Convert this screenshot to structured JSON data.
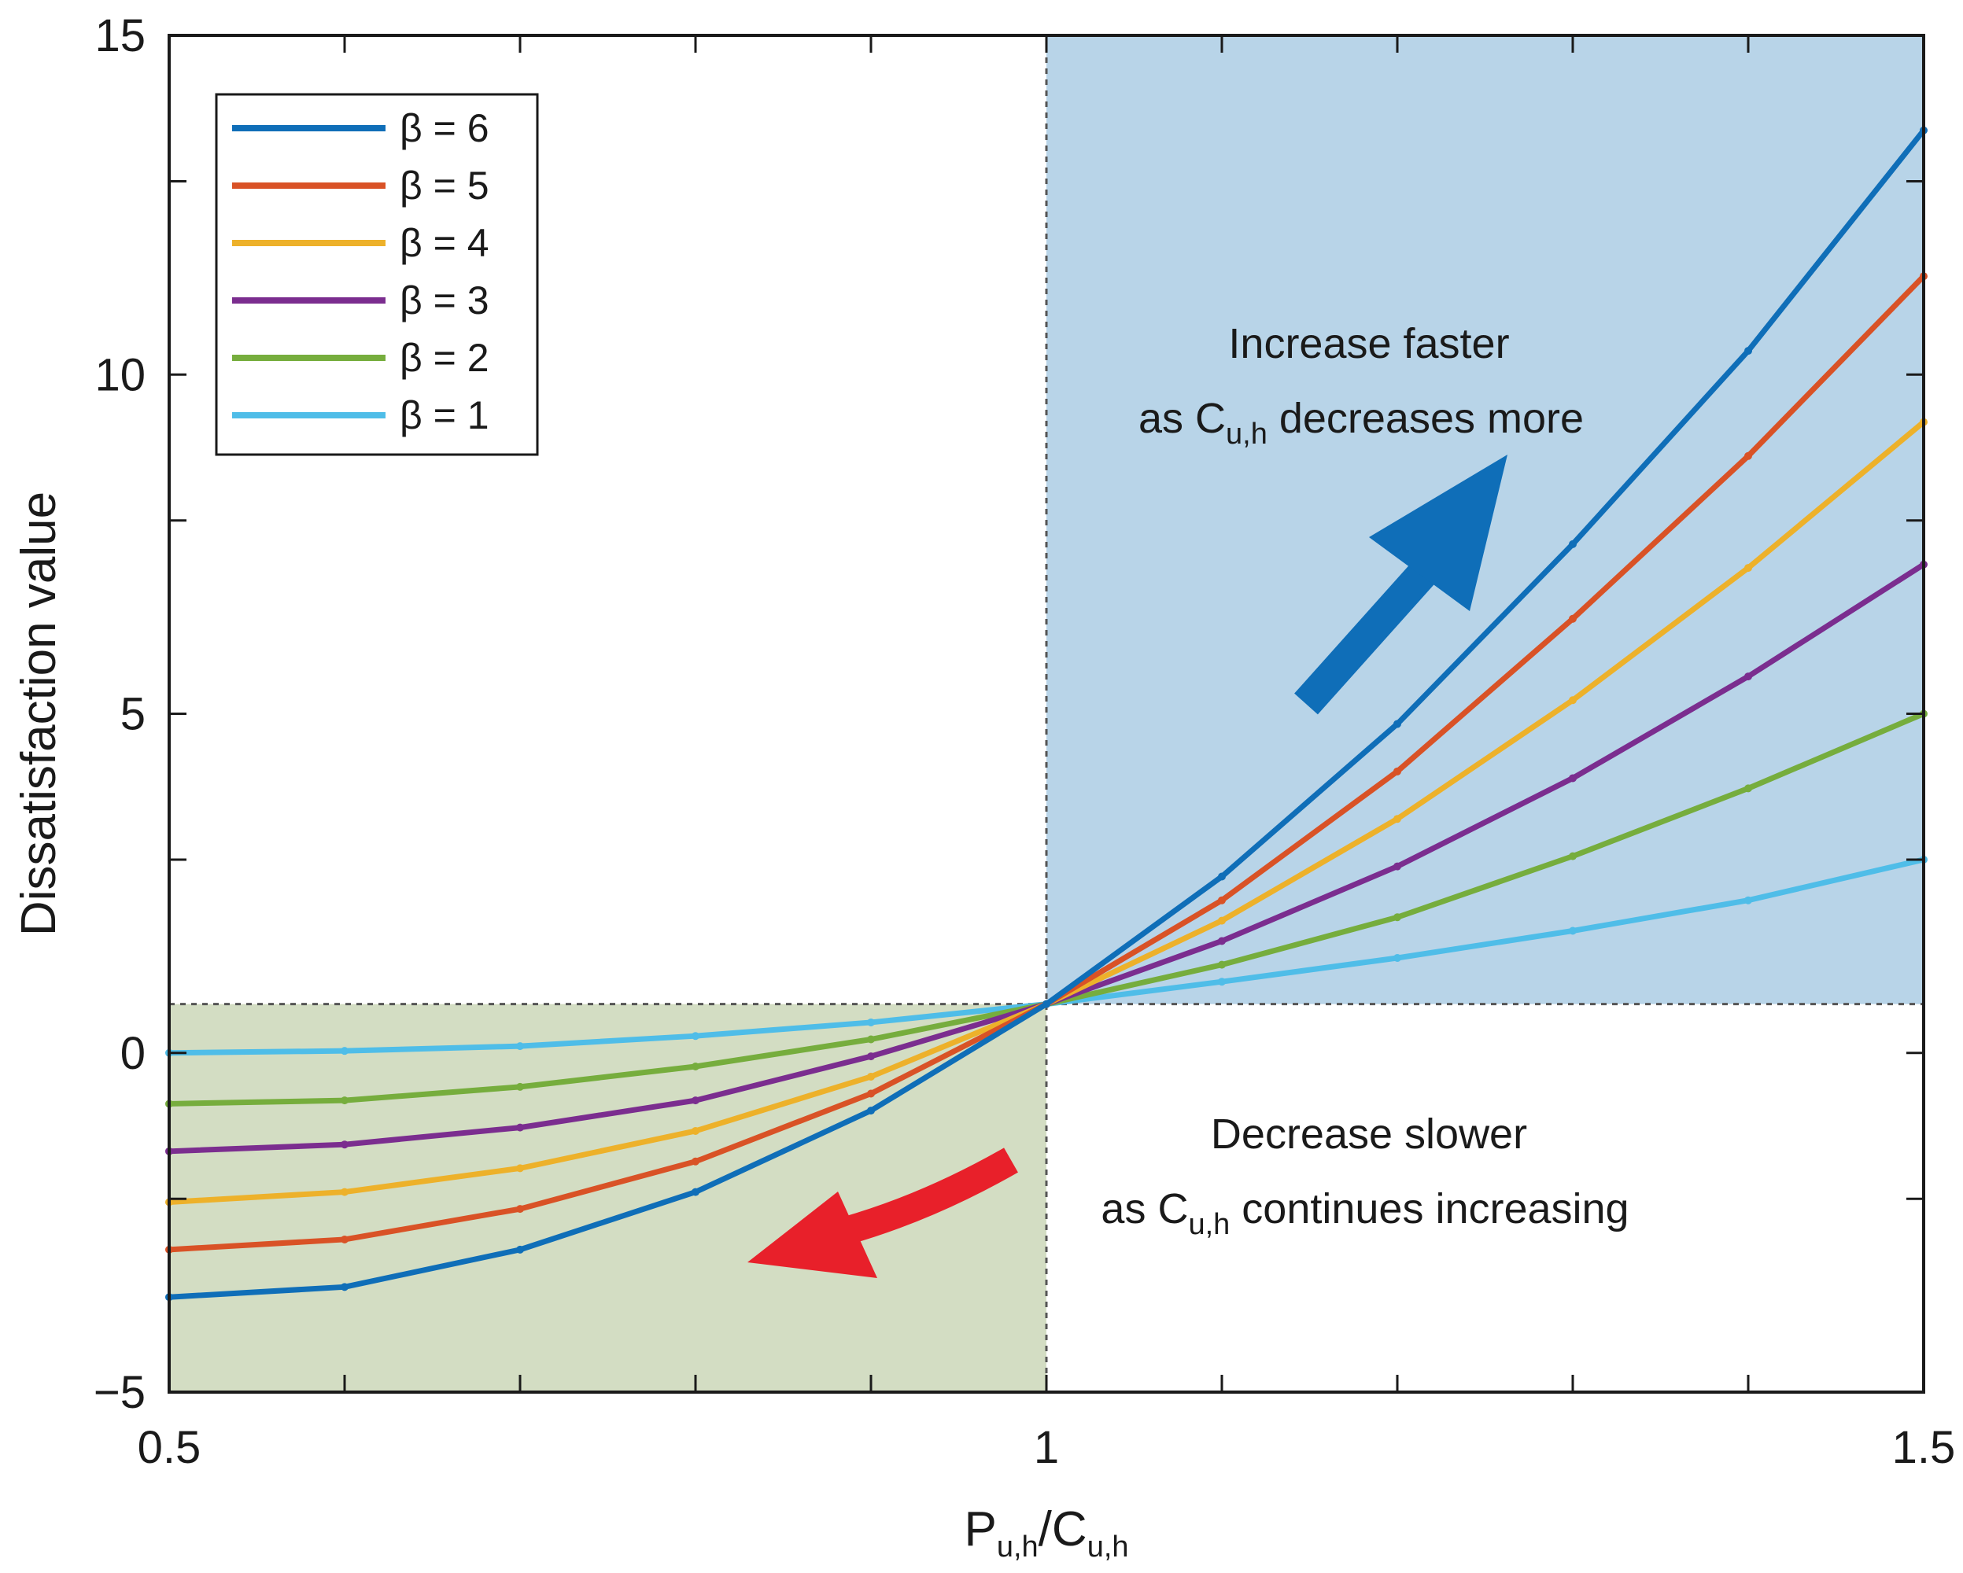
{
  "chart_data": {
    "type": "line",
    "xlabel": {
      "main": "P",
      "sub1": "u,h",
      "slash": "/",
      "main2": "C",
      "sub2": "u,h"
    },
    "ylabel": "Dissatisfaction value",
    "xlim": [
      0.5,
      1.5
    ],
    "ylim": [
      -5,
      15
    ],
    "x_ticks": [
      0.5,
      1,
      1.5
    ],
    "x_tick_labels": [
      "0.5",
      "1",
      "1.5"
    ],
    "y_ticks": [
      -5,
      0,
      5,
      10,
      15
    ],
    "y_tick_labels": [
      "−5",
      "0",
      "5",
      "10",
      "15"
    ],
    "y_minor_ticks": [
      -2.15,
      2.85,
      7.85,
      12.85
    ],
    "x_minor_ticks": [
      0.6,
      0.7,
      0.8,
      0.9,
      1.1,
      1.2,
      1.3,
      1.4
    ],
    "reference": {
      "x": 1.0,
      "y": 0.72
    },
    "regions": [
      {
        "name": "upper-right",
        "x": [
          1.0,
          1.5
        ],
        "y": [
          0.72,
          15
        ],
        "color": "#b8d4e8"
      },
      {
        "name": "lower-left",
        "x": [
          0.5,
          1.0
        ],
        "y": [
          -5,
          0.72
        ],
        "color": "#d3ddc3"
      }
    ],
    "x": [
      0.5,
      0.6,
      0.7,
      0.8,
      0.9,
      1.0,
      1.1,
      1.2,
      1.3,
      1.4,
      1.5
    ],
    "series": [
      {
        "name": "β = 6",
        "color": "#0f6eb8",
        "values": [
          -3.6,
          -3.45,
          -2.9,
          -2.05,
          -0.85,
          0.72,
          2.6,
          4.85,
          7.5,
          10.35,
          13.6
        ]
      },
      {
        "name": "β = 5",
        "color": "#d95226",
        "values": [
          -2.9,
          -2.75,
          -2.3,
          -1.6,
          -0.6,
          0.72,
          2.25,
          4.15,
          6.4,
          8.8,
          11.45
        ]
      },
      {
        "name": "β = 4",
        "color": "#edb12a",
        "values": [
          -2.2,
          -2.05,
          -1.7,
          -1.15,
          -0.35,
          0.72,
          1.95,
          3.45,
          5.2,
          7.15,
          9.3
        ]
      },
      {
        "name": "β = 3",
        "color": "#7b2d8f",
        "values": [
          -1.45,
          -1.35,
          -1.1,
          -0.7,
          -0.05,
          0.72,
          1.65,
          2.75,
          4.05,
          5.55,
          7.2
        ]
      },
      {
        "name": "β = 2",
        "color": "#76ad3d",
        "values": [
          -0.75,
          -0.7,
          -0.5,
          -0.2,
          0.2,
          0.72,
          1.3,
          2.0,
          2.9,
          3.9,
          5.0
        ]
      },
      {
        "name": "β = 1",
        "color": "#4fbde8",
        "values": [
          0.0,
          0.03,
          0.1,
          0.25,
          0.45,
          0.72,
          1.05,
          1.4,
          1.8,
          2.25,
          2.85
        ]
      }
    ],
    "annotations": {
      "upper": {
        "line1": "Increase faster",
        "prefix": "as C",
        "sub": "u,h",
        "suffix": " decreases more"
      },
      "lower": {
        "line1": "Decrease slower",
        "prefix": "as C",
        "sub": "u,h",
        "suffix": " continues increasing"
      }
    },
    "arrows": [
      {
        "name": "increase-arrow",
        "color": "#0f6eb8"
      },
      {
        "name": "decrease-arrow",
        "color": "#e8202a"
      }
    ],
    "legend_position": "top-left"
  }
}
